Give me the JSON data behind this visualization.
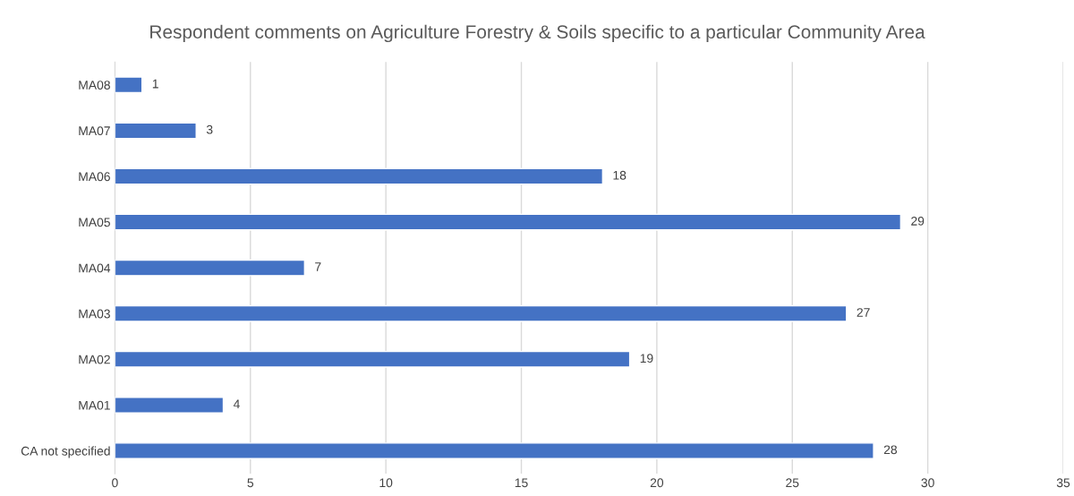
{
  "chart_data": {
    "type": "bar",
    "orientation": "horizontal",
    "title": "Respondent comments on Agriculture Forestry & Soils specific to a particular Community Area",
    "categories": [
      "MA08",
      "MA07",
      "MA06",
      "MA05",
      "MA04",
      "MA03",
      "MA02",
      "MA01",
      "CA not specified"
    ],
    "values": [
      1,
      3,
      18,
      29,
      7,
      27,
      19,
      4,
      28
    ],
    "color": "#4472c4",
    "xlim": [
      0,
      35
    ],
    "xticks": [
      0,
      5,
      10,
      15,
      20,
      25,
      30,
      35
    ],
    "grid": "x",
    "data_labels": true,
    "legend": false
  }
}
